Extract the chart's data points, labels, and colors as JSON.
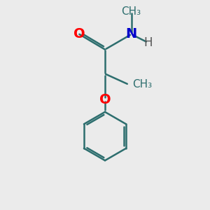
{
  "bg_color": "#ebebeb",
  "bond_color": "#2d6e6e",
  "O_color": "#ff0000",
  "N_color": "#0000cc",
  "line_width": 1.8,
  "font_size": 14,
  "small_font_size": 11,
  "fig_size": [
    3.0,
    3.0
  ],
  "dpi": 100,
  "xlim": [
    -0.5,
    1.5
  ],
  "ylim": [
    -1.8,
    1.2
  ]
}
